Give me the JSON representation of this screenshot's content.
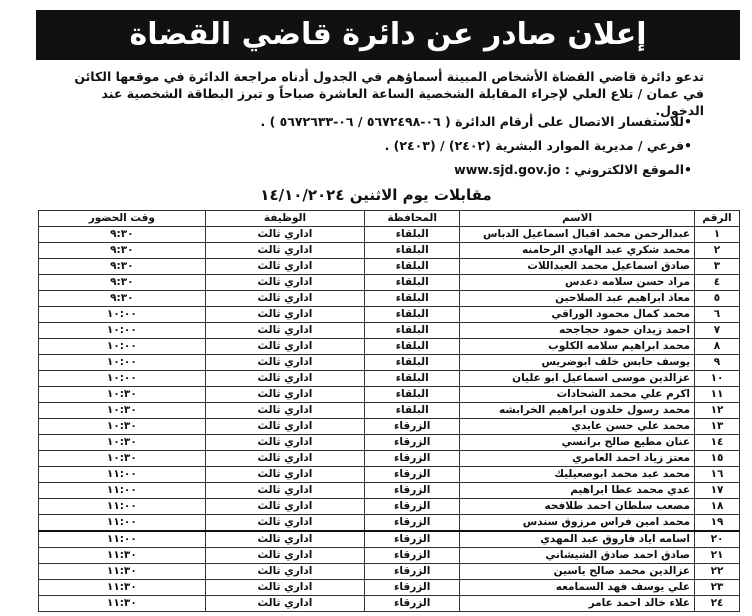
{
  "header": {
    "title": "إعلان صادر عن دائرة قاضي القضاة"
  },
  "intro": "تدعو دائرة قاضي القضاة الأشخاص المبينة أسماؤهم في الجدول أدناه مراجعة الدائرة في موقعها الكائن في عمان / تلاع العلي لإجراء المقابلة الشخصية الساعة العاشرة صباحاً و تبرز البطاقة الشخصية عند الدخول.",
  "contacts": [
    "•للاستفسار الاتصال على أرقام الدائرة ( ٠٦-٥٦٧٢٤٩٨ / ٠٦-٥٦٧٢٦٣٣ ) .",
    "•فرعي / مديرية الموارد البشرية (٢٤٠٢) / (٢٤٠٣) .",
    "•الموقع الالكتروني : www.sjd.gov.jo"
  ],
  "subtitle": "مقابلات يوم الاثنين ١٤/١٠/٢٠٢٤",
  "table": {
    "columns": [
      "الرقم",
      "الاسم",
      "المحافظة",
      "الوظيفة",
      "وقت الحضور"
    ],
    "rows": [
      [
        "١",
        "عبدالرحمن محمد اقبال اسماعيل الدباس",
        "البلقاء",
        "اداري ثالث",
        "٩:٣٠"
      ],
      [
        "٢",
        "محمد شكري عبد الهادي الرحامنه",
        "البلقاء",
        "اداري ثالث",
        "٩:٣٠"
      ],
      [
        "٣",
        "صادق اسماعيل محمد العبداللات",
        "البلقاء",
        "اداري ثالث",
        "٩:٣٠"
      ],
      [
        "٤",
        "مراد حسن سلامه دعدس",
        "البلقاء",
        "اداري ثالث",
        "٩:٣٠"
      ],
      [
        "٥",
        "معاذ ابراهيم عبد الصلاحين",
        "البلقاء",
        "اداري ثالث",
        "٩:٣٠"
      ],
      [
        "٦",
        "محمد كمال محمود الوراقي",
        "البلقاء",
        "اداري ثالث",
        "١٠:٠٠"
      ],
      [
        "٧",
        "احمد زيدان حمود حجاجحه",
        "البلقاء",
        "اداري ثالث",
        "١٠:٠٠"
      ],
      [
        "٨",
        "محمد ابراهيم سلامه الكلوب",
        "البلقاء",
        "اداري ثالث",
        "١٠:٠٠"
      ],
      [
        "٩",
        "يوسف حابس خلف ابوضريس",
        "البلقاء",
        "اداري ثالث",
        "١٠:٠٠"
      ],
      [
        "١٠",
        "عزالدين موسى اسماعيل ابو عليان",
        "البلقاء",
        "اداري ثالث",
        "١٠:٠٠"
      ],
      [
        "١١",
        "اكرم علي محمد الشحادات",
        "البلقاء",
        "اداري ثالث",
        "١٠:٣٠"
      ],
      [
        "١٢",
        "محمد رسول خلدون ابراهيم الخرابشه",
        "البلقاء",
        "اداري ثالث",
        "١٠:٣٠"
      ],
      [
        "١٣",
        "محمد علي حسن عايدي",
        "الزرقاء",
        "اداري ثالث",
        "١٠:٣٠"
      ],
      [
        "١٤",
        "عنان مطيع صالح برانسي",
        "الزرقاء",
        "اداري ثالث",
        "١٠:٣٠"
      ],
      [
        "١٥",
        "معتز زياد احمد العامري",
        "الزرقاء",
        "اداري ثالث",
        "١٠:٣٠"
      ],
      [
        "١٦",
        "محمد عبد محمد ابوصعيليك",
        "الزرقاء",
        "اداري ثالث",
        "١١:٠٠"
      ],
      [
        "١٧",
        "عدي محمد عطا ابراهيم",
        "الزرقاء",
        "اداري ثالث",
        "١١:٠٠"
      ],
      [
        "١٨",
        "مصعب سلطان احمد طلافحه",
        "الزرقاء",
        "اداري ثالث",
        "١١:٠٠"
      ],
      [
        "١٩",
        "محمد امين فراس مرزوق سندس",
        "الزرقاء",
        "اداري ثالث",
        "١١:٠٠"
      ],
      [
        "٢٠",
        "اسامه اياد فاروق عبد المهدي",
        "الزرقاء",
        "اداري ثالث",
        "١١:٠٠"
      ],
      [
        "٢١",
        "صادق احمد صادق الشيشاني",
        "الزرقاء",
        "اداري ثالث",
        "١١:٣٠"
      ],
      [
        "٢٢",
        "عزالدين محمد صالح ياسين",
        "الزرقاء",
        "اداري ثالث",
        "١١:٣٠"
      ],
      [
        "٢٣",
        "علي يوسف فهد السمامعه",
        "الزرقاء",
        "اداري ثالث",
        "١١:٣٠"
      ],
      [
        "٢٤",
        "علاء خالد احمد عامر",
        "الزرقاء",
        "اداري ثالث",
        "١١:٣٠"
      ]
    ]
  }
}
